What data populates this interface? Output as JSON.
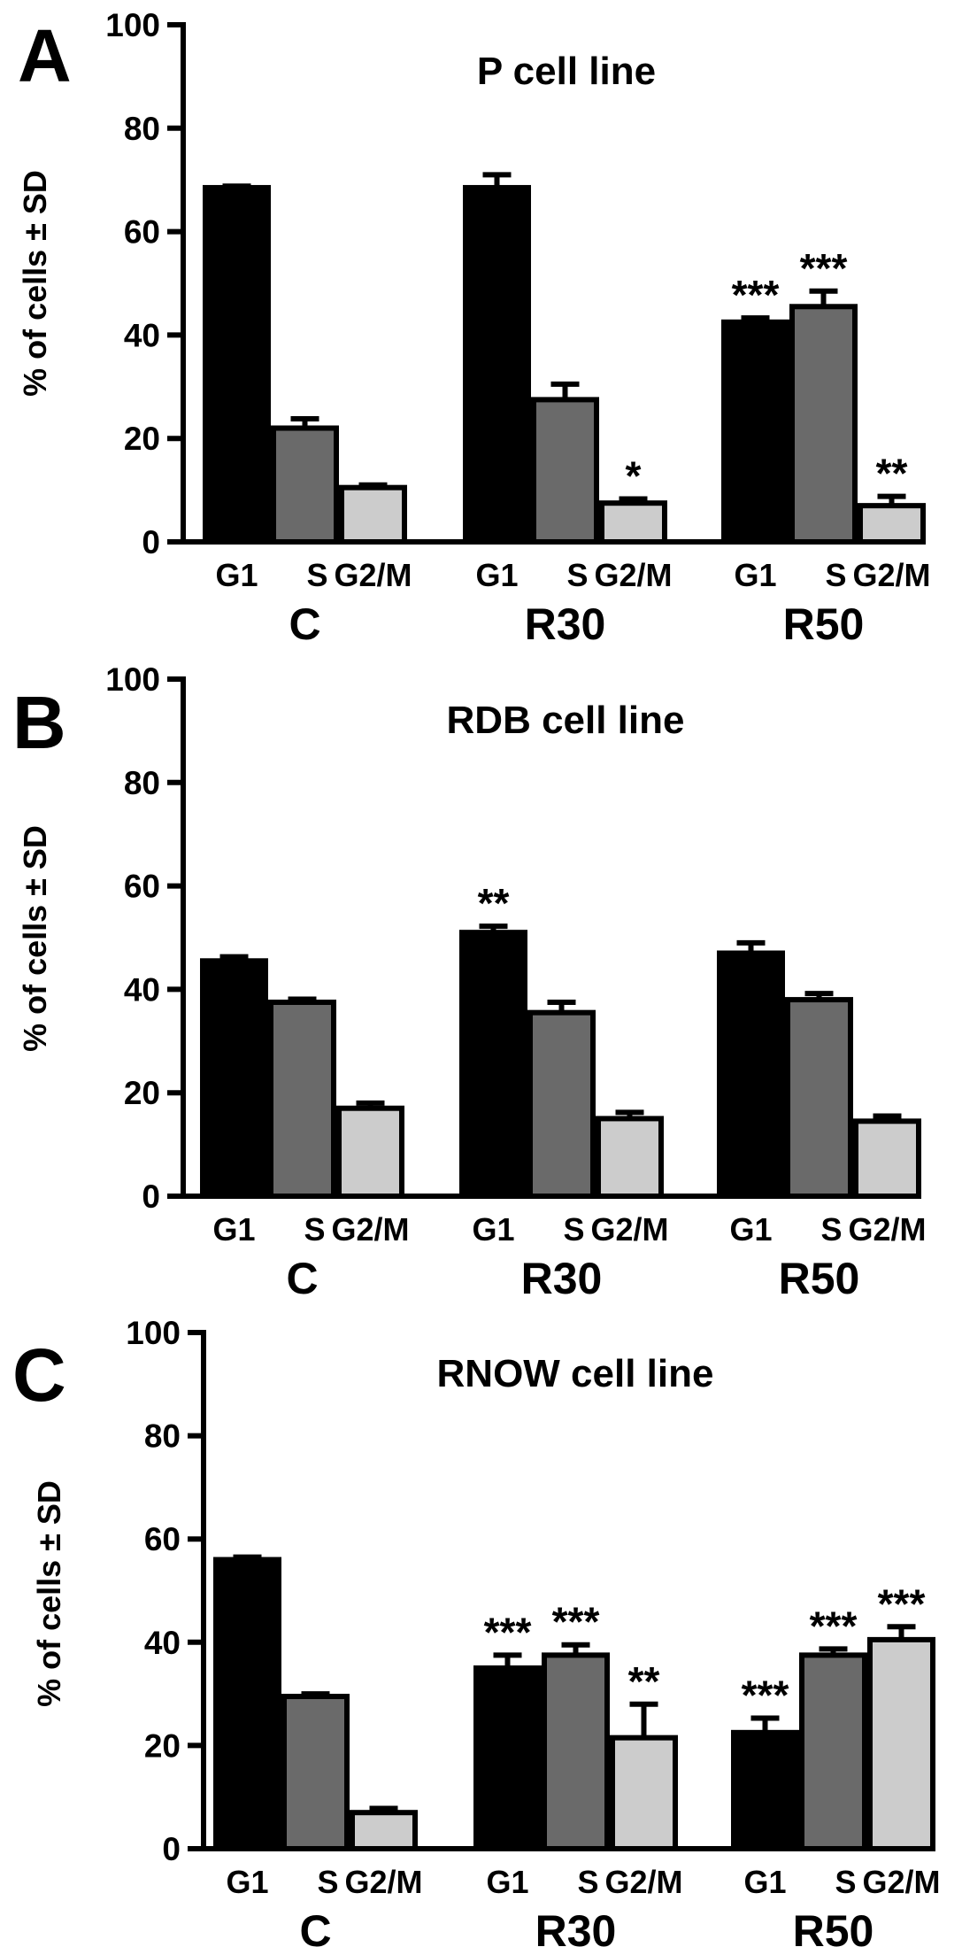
{
  "panel_labels": [
    "A",
    "B",
    "C"
  ],
  "chart_data": [
    {
      "type": "bar",
      "title": "P cell line",
      "ylabel": "% of cells ± SD",
      "ylim": [
        0,
        100
      ],
      "yticks": [
        0,
        20,
        40,
        60,
        80,
        100
      ],
      "groups": [
        "C",
        "R30",
        "R50"
      ],
      "phases": [
        "G1",
        "S",
        "G2/M"
      ],
      "colors": [
        "#000000",
        "#6a6a6a",
        "#cccccc"
      ],
      "series": [
        {
          "name": "G1",
          "values": [
            68.5,
            68.5,
            42.5
          ],
          "sd": [
            0.3,
            2.5,
            0.8
          ]
        },
        {
          "name": "S",
          "values": [
            22,
            27.5,
            45.5
          ],
          "sd": [
            1.8,
            3.0,
            3.0
          ]
        },
        {
          "name": "G2/M",
          "values": [
            10.5,
            7.5,
            7.0
          ],
          "sd": [
            0.5,
            0.8,
            1.8
          ]
        }
      ],
      "significance": [
        {
          "group": "R30",
          "phase": "G2/M",
          "label": "*"
        },
        {
          "group": "R50",
          "phase": "G1",
          "label": "***"
        },
        {
          "group": "R50",
          "phase": "S",
          "label": "***"
        },
        {
          "group": "R50",
          "phase": "G2/M",
          "label": "**"
        }
      ]
    },
    {
      "type": "bar",
      "title": "RDB cell line",
      "ylabel": "% of cells ± SD",
      "ylim": [
        0,
        100
      ],
      "yticks": [
        0,
        20,
        40,
        60,
        80,
        100
      ],
      "groups": [
        "C",
        "R30",
        "R50"
      ],
      "phases": [
        "G1",
        "S",
        "G2/M"
      ],
      "colors": [
        "#000000",
        "#6a6a6a",
        "#cccccc"
      ],
      "series": [
        {
          "name": "G1",
          "values": [
            45.5,
            51,
            47
          ],
          "sd": [
            0.8,
            1.2,
            2.0
          ]
        },
        {
          "name": "S",
          "values": [
            37.5,
            35.5,
            38
          ],
          "sd": [
            0.6,
            2.0,
            1.2
          ]
        },
        {
          "name": "G2/M",
          "values": [
            17,
            15,
            14.5
          ],
          "sd": [
            1.0,
            1.2,
            1.0
          ]
        }
      ],
      "significance": [
        {
          "group": "R30",
          "phase": "G1",
          "label": "**"
        }
      ]
    },
    {
      "type": "bar",
      "title": "RNOW cell line",
      "ylabel": "% of cells ± SD",
      "ylim": [
        0,
        100
      ],
      "yticks": [
        0,
        20,
        40,
        60,
        80,
        100
      ],
      "groups": [
        "C",
        "R30",
        "R50"
      ],
      "phases": [
        "G1",
        "S",
        "G2/M"
      ],
      "colors": [
        "#000000",
        "#6a6a6a",
        "#cccccc"
      ],
      "series": [
        {
          "name": "G1",
          "values": [
            56,
            35,
            22.5
          ],
          "sd": [
            0.5,
            2.5,
            2.8
          ]
        },
        {
          "name": "S",
          "values": [
            29.5,
            37.5,
            37.5
          ],
          "sd": [
            0.5,
            2.0,
            1.2
          ]
        },
        {
          "name": "G2/M",
          "values": [
            7,
            21.5,
            40.5
          ],
          "sd": [
            0.8,
            6.5,
            2.5
          ]
        }
      ],
      "significance": [
        {
          "group": "R30",
          "phase": "G1",
          "label": "***"
        },
        {
          "group": "R30",
          "phase": "S",
          "label": "***"
        },
        {
          "group": "R30",
          "phase": "G2/M",
          "label": "**"
        },
        {
          "group": "R50",
          "phase": "G1",
          "label": "***"
        },
        {
          "group": "R50",
          "phase": "S",
          "label": "***"
        },
        {
          "group": "R50",
          "phase": "G2/M",
          "label": "***"
        }
      ]
    }
  ]
}
